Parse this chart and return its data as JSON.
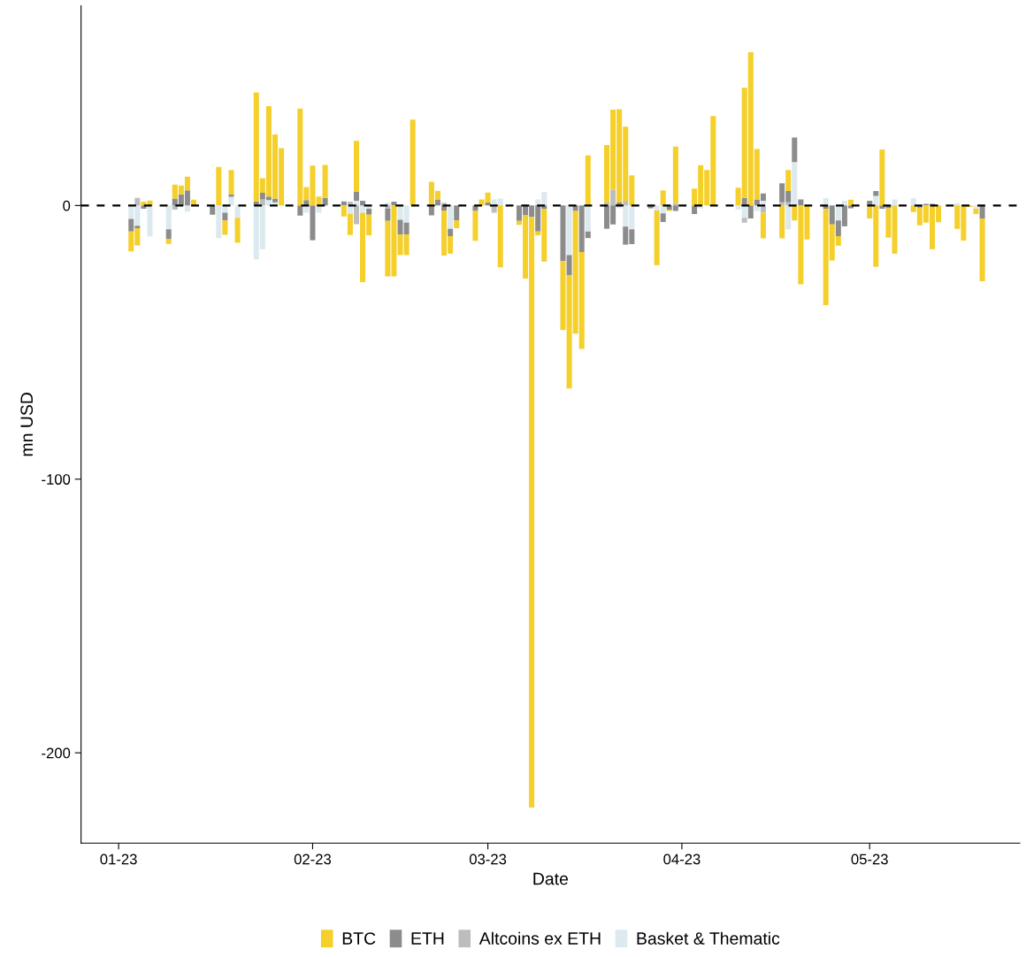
{
  "chart_data": {
    "type": "bar",
    "stacked": true,
    "xlabel": "Date",
    "ylabel": "mn USD",
    "x": [
      "2023-01-03",
      "2023-01-04",
      "2023-01-05",
      "2023-01-06",
      "2023-01-09",
      "2023-01-10",
      "2023-01-11",
      "2023-01-12",
      "2023-01-13",
      "2023-01-16",
      "2023-01-17",
      "2023-01-18",
      "2023-01-19",
      "2023-01-20",
      "2023-01-23",
      "2023-01-24",
      "2023-01-25",
      "2023-01-26",
      "2023-01-27",
      "2023-01-30",
      "2023-01-31",
      "2023-02-01",
      "2023-02-02",
      "2023-02-03",
      "2023-02-06",
      "2023-02-07",
      "2023-02-08",
      "2023-02-09",
      "2023-02-10",
      "2023-02-13",
      "2023-02-14",
      "2023-02-15",
      "2023-02-16",
      "2023-02-17",
      "2023-02-20",
      "2023-02-21",
      "2023-02-22",
      "2023-02-23",
      "2023-02-24",
      "2023-02-27",
      "2023-02-28",
      "2023-03-01",
      "2023-03-02",
      "2023-03-03",
      "2023-03-06",
      "2023-03-07",
      "2023-03-08",
      "2023-03-09",
      "2023-03-10",
      "2023-03-13",
      "2023-03-14",
      "2023-03-15",
      "2023-03-16",
      "2023-03-17",
      "2023-03-20",
      "2023-03-21",
      "2023-03-22",
      "2023-03-23",
      "2023-03-24",
      "2023-03-27",
      "2023-03-28",
      "2023-03-29",
      "2023-03-30",
      "2023-03-31",
      "2023-04-03",
      "2023-04-04",
      "2023-04-05",
      "2023-04-06",
      "2023-04-10",
      "2023-04-11",
      "2023-04-12",
      "2023-04-13",
      "2023-04-14",
      "2023-04-17",
      "2023-04-18",
      "2023-04-19",
      "2023-04-20",
      "2023-04-21",
      "2023-04-24",
      "2023-04-25",
      "2023-04-26",
      "2023-04-27",
      "2023-04-28",
      "2023-05-01",
      "2023-05-02",
      "2023-05-03",
      "2023-05-04",
      "2023-05-05",
      "2023-05-08",
      "2023-05-09",
      "2023-05-10",
      "2023-05-11",
      "2023-05-12",
      "2023-05-15",
      "2023-05-16",
      "2023-05-17",
      "2023-05-18",
      "2023-05-19"
    ],
    "series": [
      {
        "name": "Basket & Thematic",
        "color": "#dce9ee",
        "values": [
          -4.9,
          -7.4,
          null,
          -11.3,
          -8.7,
          null,
          null,
          -2.2,
          null,
          null,
          -11.9,
          -2.6,
          3.2,
          -4.5,
          -19.7,
          -16.0,
          2.0,
          1.2,
          null,
          null,
          -2.6,
          null,
          -2.6,
          null,
          null,
          -3.1,
          1.7,
          -2.6,
          -1.2,
          1.1,
          null,
          -5.2,
          -6.3,
          null,
          null,
          null,
          null,
          -8.5,
          null,
          null,
          null,
          null,
          2.2,
          2.5,
          null,
          null,
          null,
          2.2,
          4.9,
          null,
          -18.1,
          null,
          null,
          -9.5,
          null,
          null,
          -1.0,
          -7.7,
          -8.7,
          null,
          -1.8,
          -2.9,
          null,
          null,
          null,
          -1.0,
          null,
          null,
          -1.5,
          -4.5,
          null,
          -2.0,
          1.7,
          null,
          -8.7,
          15.9,
          null,
          null,
          2.7,
          null,
          -5.5,
          1.7,
          null,
          null,
          3.5,
          null,
          null,
          2.2,
          2.6,
          null,
          null,
          null,
          null,
          0.9,
          null,
          null,
          -1.2,
          null
        ]
      },
      {
        "name": "Altcoins ex ETH",
        "color": "#bdbdbd",
        "values": [
          null,
          2.8,
          null,
          null,
          null,
          -1.5,
          null,
          null,
          null,
          null,
          null,
          null,
          null,
          null,
          null,
          2.2,
          null,
          null,
          null,
          null,
          null,
          null,
          null,
          null,
          null,
          1.4,
          -6.8,
          null,
          null,
          -1.2,
          null,
          null,
          null,
          null,
          null,
          null,
          1.0,
          null,
          null,
          null,
          null,
          null,
          -2.6,
          null,
          null,
          null,
          null,
          null,
          null,
          null,
          null,
          null,
          null,
          null,
          1.1,
          5.7,
          null,
          1.7,
          null,
          null,
          null,
          null,
          null,
          0.9,
          null,
          null,
          null,
          null,
          null,
          -1.8,
          null,
          null,
          -2.6,
          1.2,
          1.2,
          null,
          null,
          null,
          null,
          null,
          null,
          null,
          null,
          null,
          null,
          null,
          null,
          null,
          null,
          null,
          null,
          null,
          null,
          null,
          null,
          null,
          null,
          null
        ]
      },
      {
        "name": "ETH",
        "color": "#8c8c8c",
        "values": [
          -4.6,
          -0.9,
          -1.2,
          null,
          -3.5,
          2.5,
          4.1,
          5.5,
          null,
          -3.4,
          null,
          -2.9,
          0.9,
          null,
          1.5,
          2.4,
          1.3,
          1.3,
          null,
          -3.7,
          2.0,
          -12.7,
          null,
          2.8,
          1.5,
          null,
          3.4,
          1.7,
          -2.2,
          -4.4,
          1.4,
          -5.4,
          -4.3,
          null,
          -3.6,
          2.2,
          -1.8,
          -2.7,
          -5.5,
          -2.0,
          null,
          1.2,
          null,
          null,
          -5.6,
          -3.6,
          -4.2,
          -9.5,
          -1.2,
          -20.3,
          -7.3,
          -2.0,
          -17.0,
          -2.4,
          -8.5,
          -6.9,
          1.1,
          -6.6,
          -5.4,
          -1.0,
          null,
          -3.1,
          -1.5,
          -2.0,
          -3.1,
          null,
          null,
          null,
          null,
          2.8,
          -4.7,
          2.2,
          2.7,
          6.9,
          4.1,
          8.9,
          2.2,
          null,
          -1.2,
          -6.9,
          -5.7,
          -7.6,
          -1.0,
          1.7,
          1.8,
          -1.2,
          -1.0,
          null,
          null,
          -0.8,
          0.6,
          0.6,
          null,
          null,
          null,
          null,
          null,
          -4.7
        ]
      },
      {
        "name": "BTC",
        "color": "#f5cf2a",
        "values": [
          -7.3,
          -6.3,
          1.4,
          1.8,
          -1.8,
          5.1,
          3.2,
          5.0,
          2.1,
          null,
          14.1,
          -5.2,
          8.9,
          -9.1,
          39.8,
          5.4,
          33.0,
          23.5,
          21.0,
          35.4,
          4.7,
          14.6,
          3.3,
          12.0,
          -4.0,
          -7.7,
          18.5,
          -25.4,
          -7.5,
          -20.3,
          -25.9,
          -7.5,
          -7.5,
          31.4,
          8.7,
          3.2,
          -16.5,
          -6.4,
          -2.8,
          -10.9,
          2.2,
          3.5,
          null,
          -22.6,
          -1.5,
          -23.1,
          -215.8,
          -1.4,
          -19.3,
          -25.2,
          -41.5,
          -44.8,
          -35.4,
          18.3,
          21.0,
          29.3,
          34.1,
          27.1,
          11.0,
          null,
          -20.0,
          5.5,
          -0.5,
          20.6,
          6.2,
          14.7,
          13.0,
          32.7,
          6.5,
          40.2,
          56.0,
          18.4,
          -9.4,
          -12.0,
          7.7,
          -5.5,
          -28.8,
          -12.4,
          -35.2,
          -13.2,
          -3.5,
          null,
          2.1,
          -4.7,
          -22.4,
          20.5,
          -10.7,
          -17.6,
          -2.4,
          -6.4,
          -6.3,
          -16.0,
          -6.1,
          -8.5,
          -12.8,
          -0.5,
          -1.9,
          -23.0
        ]
      }
    ],
    "xlim": [
      "2022-12-26",
      "2023-05-25"
    ],
    "xticks": [
      {
        "value": "2023-01-01",
        "label": "01-23"
      },
      {
        "value": "2023-02-01",
        "label": "02-23"
      },
      {
        "value": "2023-03-01",
        "label": "03-23"
      },
      {
        "value": "2023-04-01",
        "label": "04-23"
      },
      {
        "value": "2023-05-01",
        "label": "05-23"
      }
    ],
    "ylim": [
      -233,
      73
    ],
    "yticks": [
      -200,
      -100,
      0
    ],
    "ref_lines": [
      {
        "axis": "y",
        "value": 0,
        "color": "#000000",
        "line_style": "dashed"
      }
    ],
    "grid": false,
    "legend": "bottom"
  }
}
